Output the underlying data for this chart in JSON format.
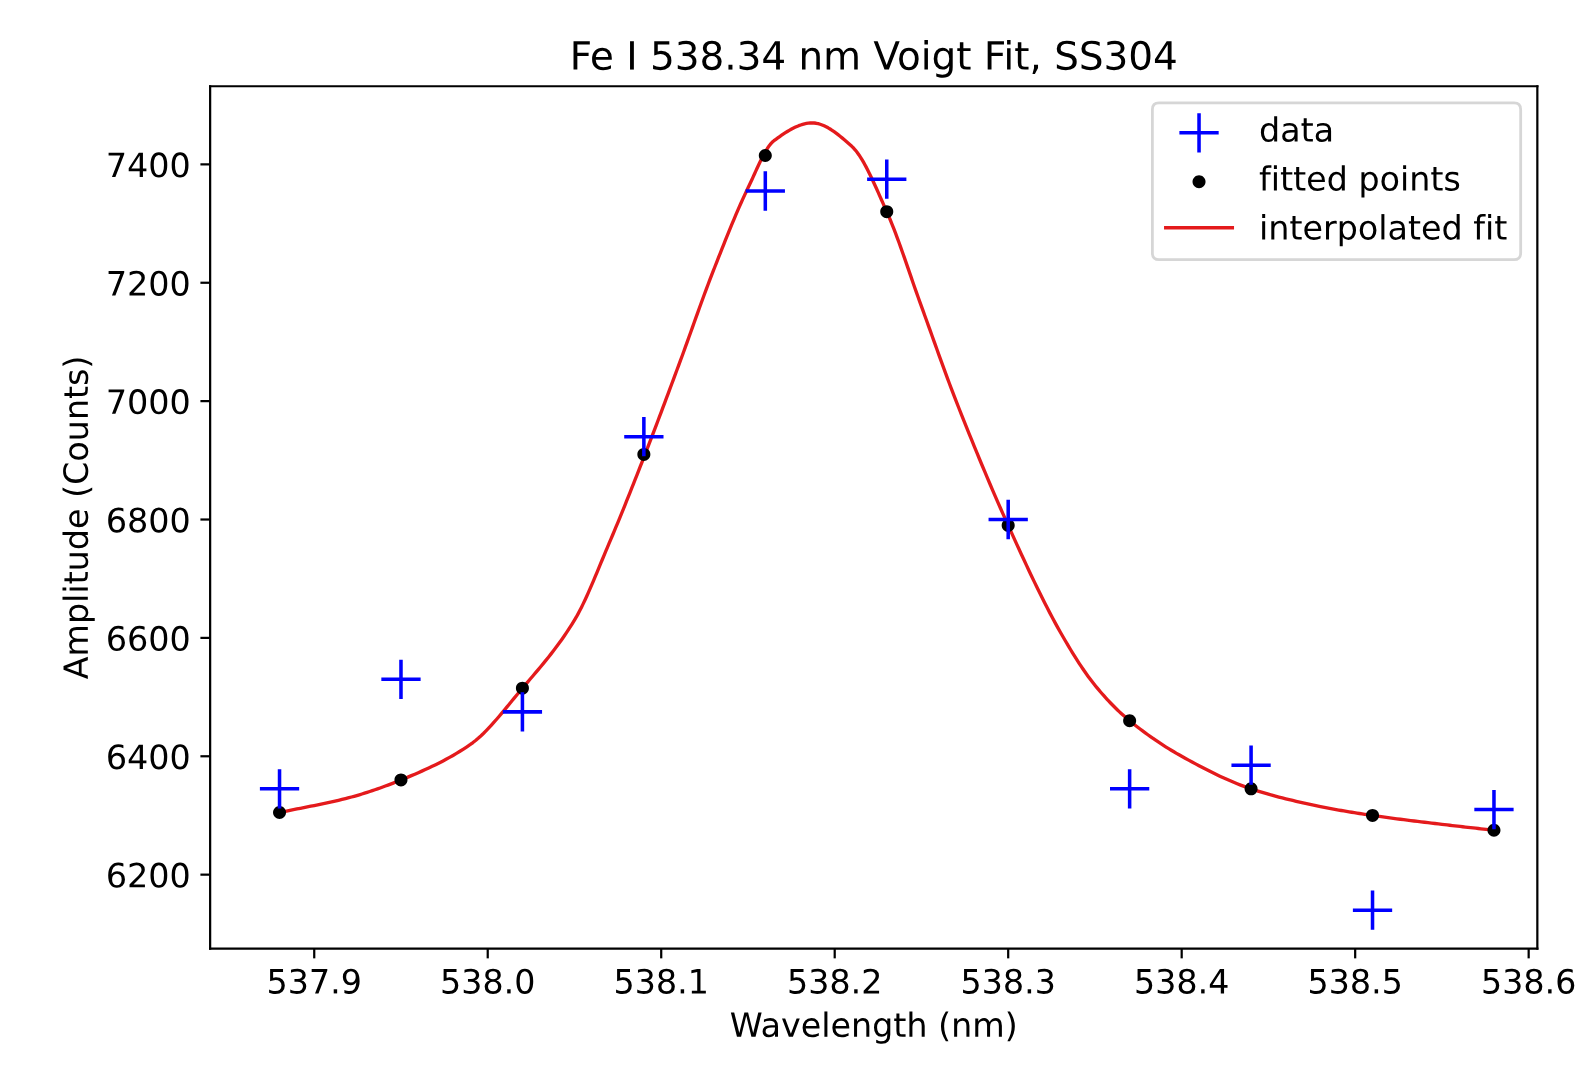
{
  "chart_data": {
    "type": "scatter",
    "title": "Fe I 538.34 nm Voigt Fit, SS304",
    "xlabel": "Wavelength (nm)",
    "ylabel": "Amplitude (Counts)",
    "x": [
      537.88,
      537.95,
      538.02,
      538.09,
      538.16,
      538.23,
      538.3,
      538.37,
      538.44,
      538.51,
      538.58
    ],
    "series": [
      {
        "name": "data",
        "marker": "cross",
        "color": "#0000ff",
        "values": [
          6345,
          6530,
          6475,
          6940,
          7355,
          7375,
          6800,
          6345,
          6385,
          6140,
          6310
        ]
      },
      {
        "name": "fitted points",
        "marker": "circle",
        "color": "#000000",
        "values": [
          6305,
          6360,
          6515,
          6910,
          7415,
          7320,
          6790,
          6460,
          6345,
          6300,
          6275
        ]
      },
      {
        "name": "interpolated fit",
        "type": "line",
        "marker": "none",
        "line_style": "solid",
        "color": "#e41a1c",
        "x": [
          537.88,
          537.92,
          537.95,
          537.99,
          538.02,
          538.05,
          538.07,
          538.09,
          538.11,
          538.13,
          538.15,
          538.165,
          538.187,
          538.21,
          538.23,
          538.25,
          538.27,
          538.3,
          538.33,
          538.35,
          538.37,
          538.4,
          538.44,
          538.48,
          538.51,
          538.55,
          538.58
        ],
        "values": [
          6305,
          6330,
          6360,
          6420,
          6515,
          6630,
          6760,
          6905,
          7060,
          7220,
          7360,
          7440,
          7470,
          7430,
          7320,
          7160,
          7000,
          6790,
          6610,
          6520,
          6460,
          6400,
          6345,
          6315,
          6300,
          6285,
          6275
        ]
      }
    ],
    "xlim": [
      537.84,
      538.605
    ],
    "ylim": [
      6075,
      7532
    ],
    "xticks": [
      537.9,
      {
        "value": 538.0,
        "label": "538.0"
      },
      538.1,
      538.2,
      538.3,
      538.4,
      538.5,
      538.6
    ],
    "yticks": [
      6200,
      6400,
      6600,
      6800,
      7000,
      7200,
      7400
    ],
    "grid": false,
    "legend": "top right"
  }
}
